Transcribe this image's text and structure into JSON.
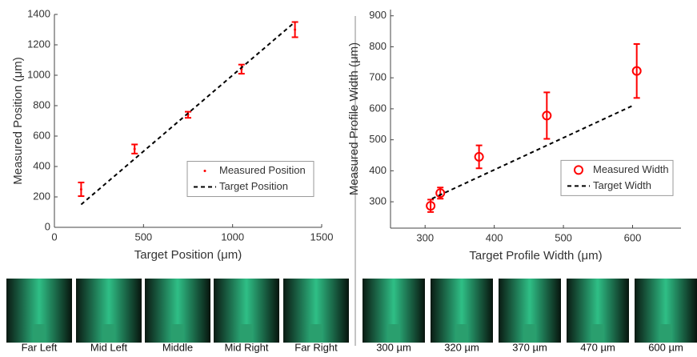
{
  "chart_data": [
    {
      "type": "errorbar",
      "xlabel": "Target Position (μm)",
      "ylabel": "Measured Position (μm)",
      "xlim": [
        0,
        1500
      ],
      "ylim": [
        0,
        1400
      ],
      "xticks": [
        0,
        500,
        1000,
        1500
      ],
      "yticks": [
        0,
        200,
        400,
        600,
        800,
        1000,
        1200,
        1400
      ],
      "legend": "lower right",
      "series": [
        {
          "name": "Measured Position",
          "color": "#ff0000",
          "marker": "dot",
          "x": [
            150,
            450,
            750,
            1050,
            1350
          ],
          "values": [
            250,
            515,
            740,
            1040,
            1300
          ],
          "errors": [
            45,
            30,
            20,
            30,
            50
          ]
        },
        {
          "name": "Target Position",
          "color": "#000000",
          "style": "dashed",
          "x": [
            150,
            1350
          ],
          "values": [
            150,
            1350
          ]
        }
      ]
    },
    {
      "type": "errorbar",
      "xlabel": "Target Profile Width (μm)",
      "ylabel": "Measured Profile Width (μm)",
      "xlim": [
        250,
        670
      ],
      "ylim": [
        215,
        920
      ],
      "xticks": [
        300,
        400,
        500,
        600
      ],
      "yticks": [
        300,
        400,
        500,
        600,
        700,
        800,
        900
      ],
      "legend": "lower right",
      "series": [
        {
          "name": "Measured Width",
          "color": "#ff0000",
          "marker": "circle",
          "x": [
            308,
            322,
            378,
            476,
            606
          ],
          "values": [
            287,
            328,
            445,
            578,
            722
          ],
          "errors": [
            20,
            18,
            37,
            75,
            87
          ]
        },
        {
          "name": "Target Width",
          "color": "#000000",
          "style": "dashed",
          "x": [
            310,
            600
          ],
          "values": [
            310,
            610
          ]
        }
      ]
    }
  ],
  "left_images": [
    "Far Left",
    "Mid Left",
    "Middle",
    "Mid Right",
    "Far Right"
  ],
  "right_images": [
    "300 µm",
    "320 µm",
    "370 µm",
    "470 µm",
    "600 µm"
  ]
}
